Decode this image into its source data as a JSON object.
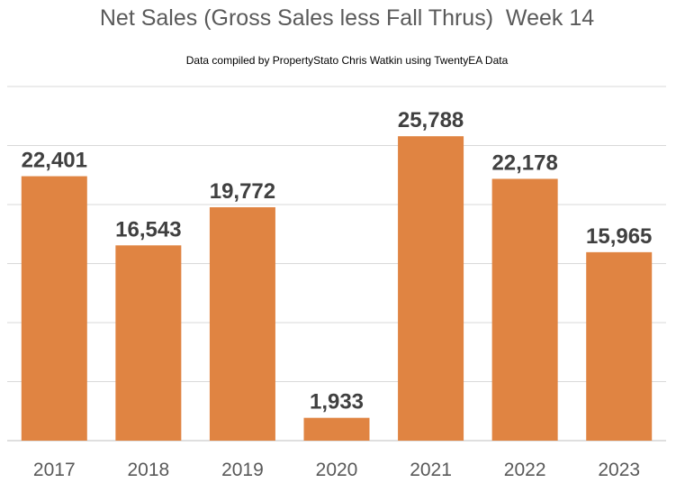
{
  "chart_data": {
    "type": "bar",
    "title": "Net Sales (Gross Sales less Fall Thrus)  Week 14",
    "subtitle": "Data compiled by PropertyStato Chris Watkin using TwentyEA Data",
    "categories": [
      "2017",
      "2018",
      "2019",
      "2020",
      "2021",
      "2022",
      "2023"
    ],
    "values": [
      22401,
      16543,
      19772,
      1933,
      25788,
      22178,
      15965
    ],
    "value_labels": [
      "22,401",
      "16,543",
      "19,772",
      "1,933",
      "25,788",
      "22,178",
      "15,965"
    ],
    "xlabel": "",
    "ylabel": "",
    "ylim": [
      0,
      30000
    ],
    "grid": true,
    "legend": "none",
    "colors": {
      "bar": "#e08442",
      "grid": "#d9d9d9",
      "axis": "#bfbfbf",
      "title": "#5a5a5a",
      "data_label": "#404040",
      "tick_label": "#595959"
    }
  }
}
